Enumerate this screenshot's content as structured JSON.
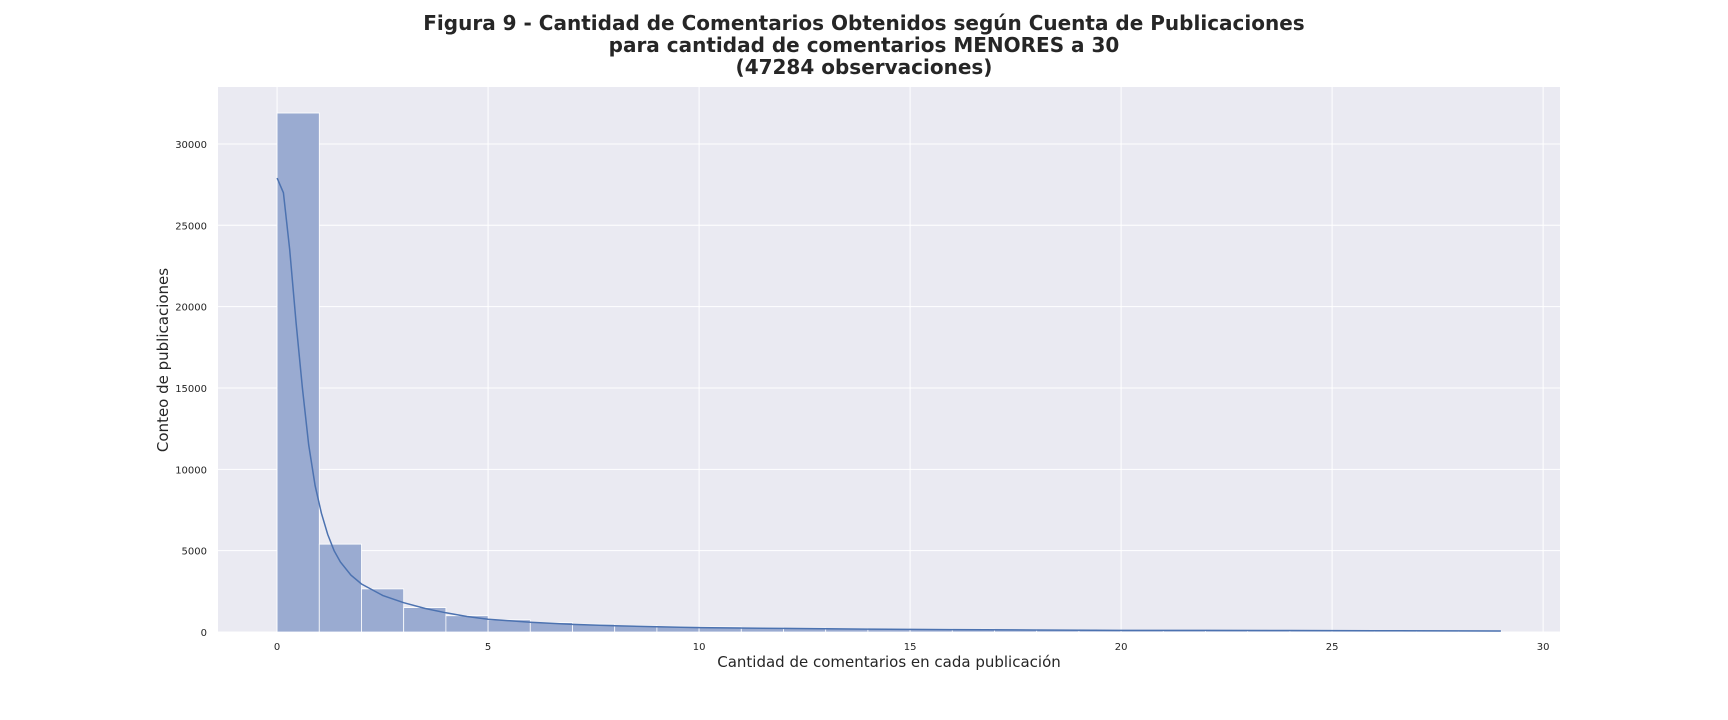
{
  "chart_data": {
    "type": "bar",
    "title_lines": [
      "Figura 9 - Cantidad de Comentarios Obtenidos según Cuenta de Publicaciones",
      "para cantidad de comentarios MENORES a 30",
      "(47284 observaciones)"
    ],
    "xlabel": "Cantidad de comentarios en cada publicación",
    "ylabel": "Conteo de publicaciones",
    "xlim": [
      -1.4,
      30.4
    ],
    "ylim": [
      0,
      33500
    ],
    "xticks": [
      0,
      5,
      10,
      15,
      20,
      25,
      30
    ],
    "yticks": [
      0,
      5000,
      10000,
      15000,
      20000,
      25000,
      30000
    ],
    "grid": true,
    "legend": "none",
    "bins": [
      {
        "x0": 0,
        "x1": 1,
        "value": 31900
      },
      {
        "x0": 1,
        "x1": 2,
        "value": 5400
      },
      {
        "x0": 2,
        "x1": 3,
        "value": 2650
      },
      {
        "x0": 3,
        "x1": 4,
        "value": 1500
      },
      {
        "x0": 4,
        "x1": 5,
        "value": 1000
      },
      {
        "x0": 5,
        "x1": 6,
        "value": 750
      },
      {
        "x0": 6,
        "x1": 7,
        "value": 580
      },
      {
        "x0": 7,
        "x1": 8,
        "value": 480
      },
      {
        "x0": 8,
        "x1": 9,
        "value": 400
      },
      {
        "x0": 9,
        "x1": 10,
        "value": 350
      },
      {
        "x0": 10,
        "x1": 11,
        "value": 310
      },
      {
        "x0": 11,
        "x1": 12,
        "value": 270
      },
      {
        "x0": 12,
        "x1": 13,
        "value": 240
      },
      {
        "x0": 13,
        "x1": 14,
        "value": 220
      },
      {
        "x0": 14,
        "x1": 15,
        "value": 200
      },
      {
        "x0": 15,
        "x1": 16,
        "value": 185
      },
      {
        "x0": 16,
        "x1": 17,
        "value": 170
      },
      {
        "x0": 17,
        "x1": 18,
        "value": 155
      },
      {
        "x0": 18,
        "x1": 19,
        "value": 140
      },
      {
        "x0": 19,
        "x1": 20,
        "value": 125
      },
      {
        "x0": 20,
        "x1": 21,
        "value": 115
      },
      {
        "x0": 21,
        "x1": 22,
        "value": 110
      },
      {
        "x0": 22,
        "x1": 23,
        "value": 105
      },
      {
        "x0": 23,
        "x1": 24,
        "value": 100
      },
      {
        "x0": 24,
        "x1": 25,
        "value": 95
      },
      {
        "x0": 25,
        "x1": 26,
        "value": 90
      },
      {
        "x0": 26,
        "x1": 27,
        "value": 85
      },
      {
        "x0": 27,
        "x1": 28,
        "value": 80
      },
      {
        "x0": 28,
        "x1": 29,
        "value": 75
      }
    ],
    "kde": {
      "x": [
        0,
        0.15,
        0.3,
        0.45,
        0.6,
        0.75,
        0.9,
        1.05,
        1.2,
        1.35,
        1.5,
        1.75,
        2.0,
        2.5,
        3.0,
        3.5,
        4.0,
        4.5,
        5.0,
        6.0,
        7.0,
        8.0,
        9.0,
        10.0,
        12.0,
        14.0,
        16.0,
        18.0,
        20.0,
        22.0,
        24.0,
        26.0,
        28.0,
        29.0
      ],
      "y": [
        27900,
        27000,
        23500,
        19000,
        15000,
        11500,
        9000,
        7300,
        6000,
        5000,
        4300,
        3500,
        2950,
        2250,
        1800,
        1450,
        1180,
        950,
        780,
        600,
        470,
        380,
        320,
        270,
        220,
        180,
        150,
        120,
        100,
        100,
        95,
        80,
        70,
        60
      ]
    },
    "colors": {
      "bar_fill": "#9aabd1",
      "bar_edge": "#ffffff",
      "kde_line": "#4c72b0",
      "plot_background": "#eaeaf2",
      "grid": "#ffffff",
      "text": "#262626"
    }
  }
}
